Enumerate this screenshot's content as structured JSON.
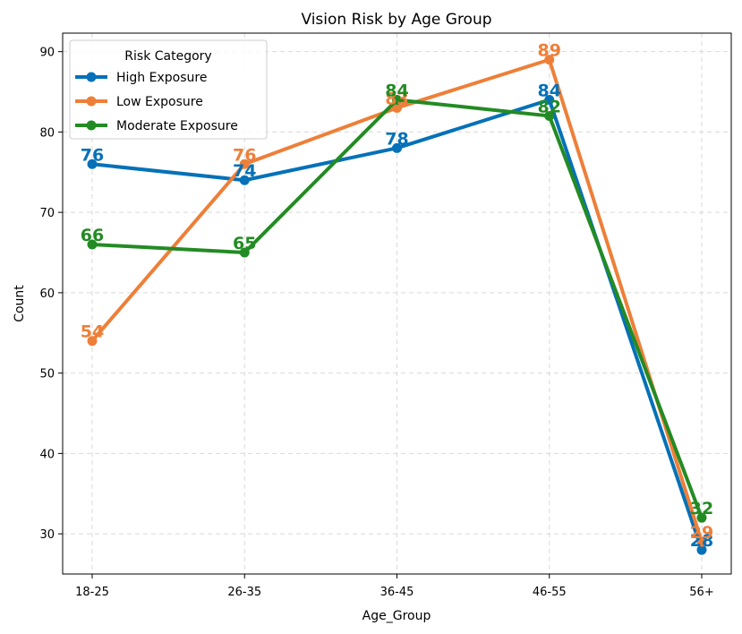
{
  "chart_data": {
    "type": "line",
    "title": "Vision Risk by Age Group",
    "xlabel": "Age_Group",
    "ylabel": "Count",
    "categories": [
      "18-25",
      "26-35",
      "36-45",
      "46-55",
      "56+"
    ],
    "ylim": [
      25,
      92.3
    ],
    "yticks": [
      30,
      40,
      50,
      60,
      70,
      80,
      90
    ],
    "grid": true,
    "legend": {
      "title": "Risk Category",
      "placement": "top-left"
    },
    "series": [
      {
        "name": "High Exposure",
        "color": "#0571b8",
        "values": [
          76,
          74,
          78,
          84,
          28
        ]
      },
      {
        "name": "Low Exposure",
        "color": "#ee7f38",
        "values": [
          54,
          76,
          83,
          89,
          29
        ]
      },
      {
        "name": "Moderate Exposure",
        "color": "#238b23",
        "values": [
          66,
          65,
          84,
          82,
          32
        ]
      }
    ]
  }
}
